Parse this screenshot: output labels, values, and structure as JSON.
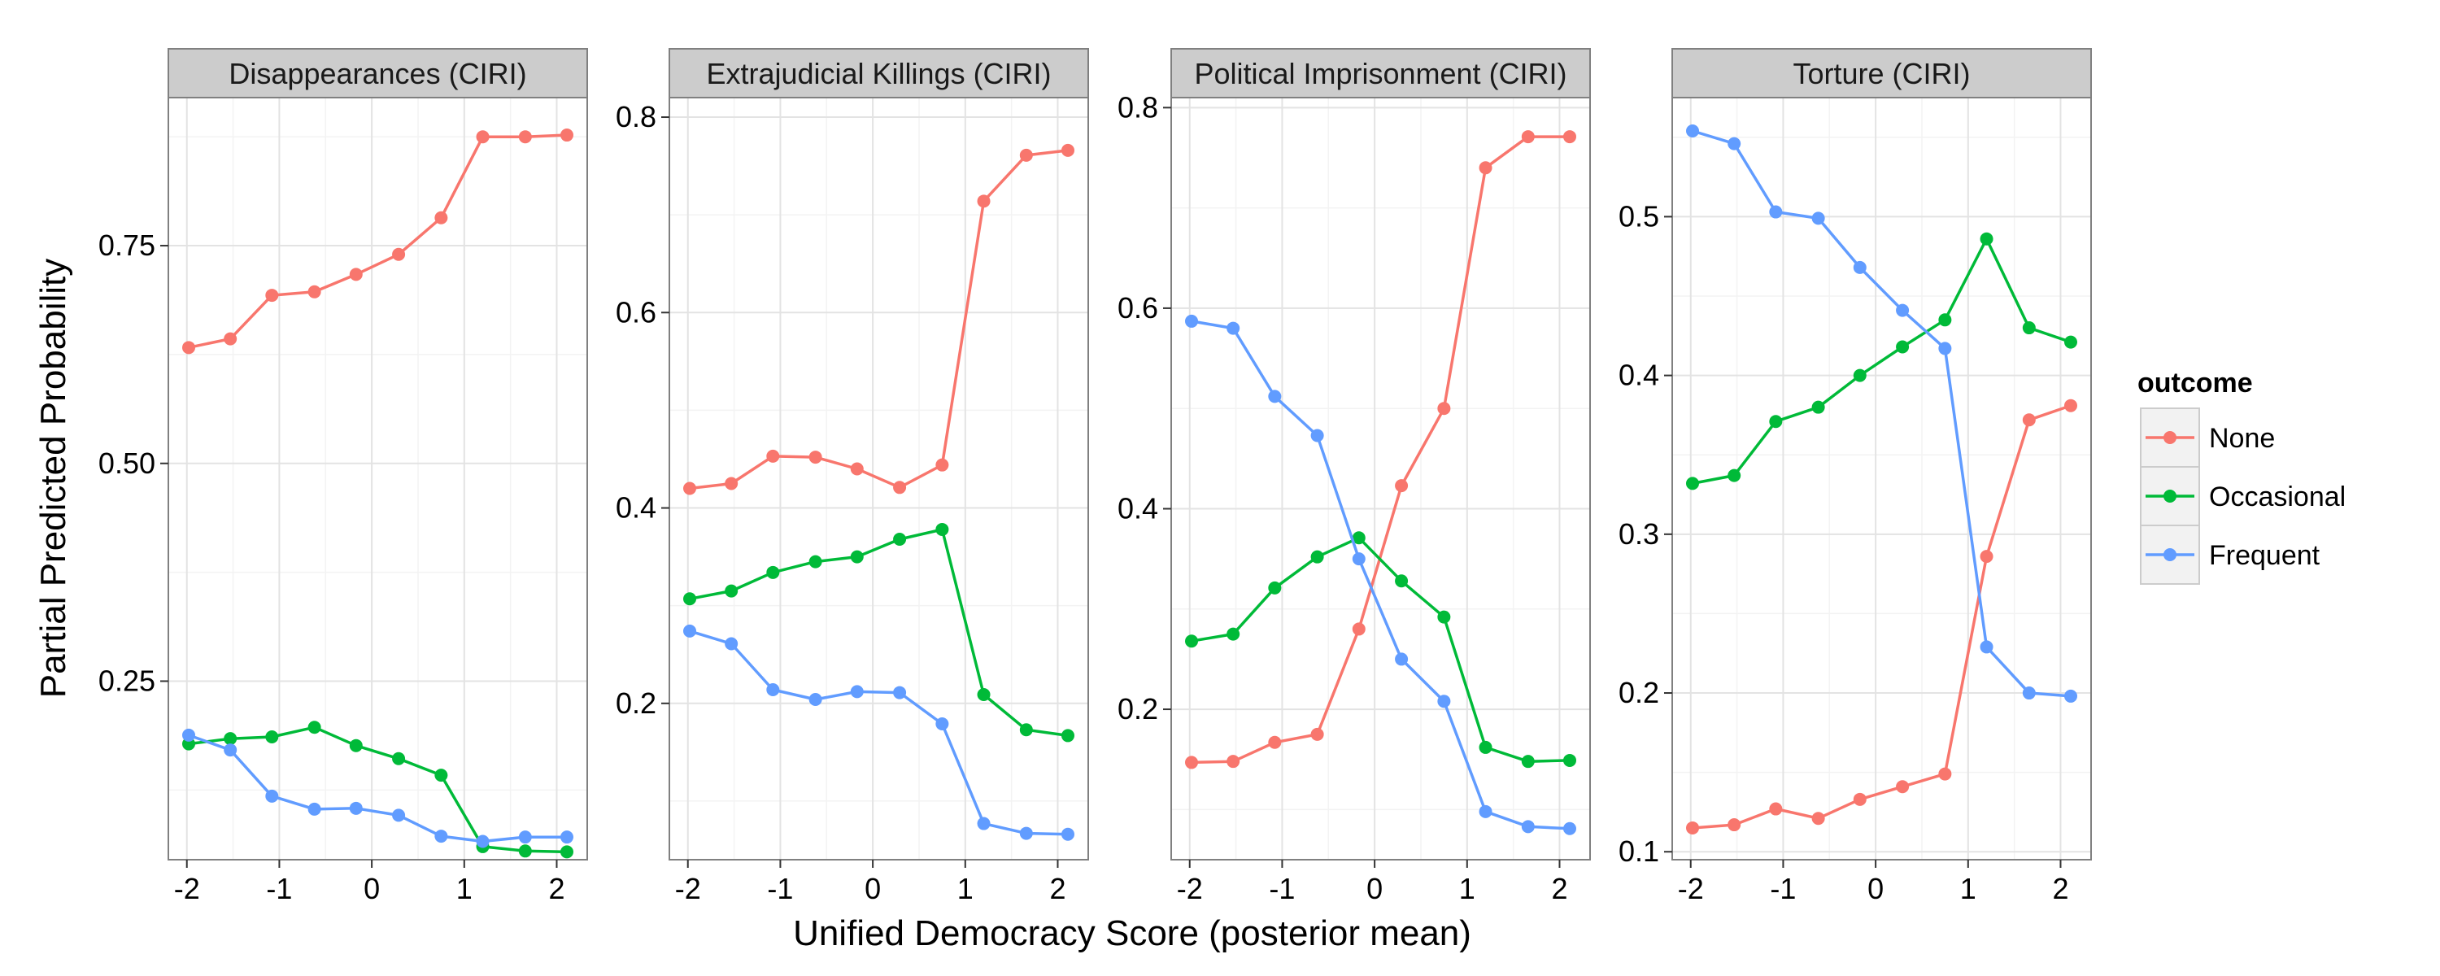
{
  "chart_data": {
    "type": "line",
    "ylabel": "Partial Predicted Probability",
    "xlabel": "Unified Democracy Score (posterior mean)",
    "legend": {
      "title": "outcome",
      "placement": "right",
      "entries": [
        "None",
        "Occasional",
        "Frequent"
      ]
    },
    "colors": {
      "None": "#F8766D",
      "Occasional": "#00BA38",
      "Frequent": "#619CFF"
    },
    "grid": true,
    "x": [
      -1.98,
      -1.53,
      -1.08,
      -0.62,
      -0.17,
      0.29,
      0.75,
      1.2,
      1.66,
      2.11
    ],
    "xlim": [
      -2.2,
      2.33
    ],
    "xticks": [
      -2,
      -1,
      0,
      1,
      2
    ],
    "xtick_labels": [
      "-2",
      "-1",
      "0",
      "1",
      "2"
    ],
    "panels": [
      {
        "title": "Disappearances (CIRI)",
        "ylim": [
          0.045,
          0.92
        ],
        "yticks": [
          0.25,
          0.5,
          0.75
        ],
        "ytick_labels": [
          "0.25",
          "0.50",
          "0.75"
        ],
        "series": [
          {
            "name": "None",
            "values": [
              0.633,
              0.643,
              0.693,
              0.697,
              0.717,
              0.74,
              0.782,
              0.875,
              0.875,
              0.877
            ]
          },
          {
            "name": "Occasional",
            "values": [
              0.178,
              0.184,
              0.186,
              0.197,
              0.176,
              0.161,
              0.142,
              0.06,
              0.055,
              0.054
            ]
          },
          {
            "name": "Frequent",
            "values": [
              0.188,
              0.171,
              0.118,
              0.103,
              0.104,
              0.096,
              0.072,
              0.066,
              0.071,
              0.071
            ]
          }
        ]
      },
      {
        "title": "Extrajudicial Killings (CIRI)",
        "ylim": [
          0.04,
          0.82
        ],
        "yticks": [
          0.2,
          0.4,
          0.6,
          0.8
        ],
        "ytick_labels": [
          "0.2",
          "0.4",
          "0.6",
          "0.8"
        ],
        "series": [
          {
            "name": "None",
            "values": [
              0.42,
              0.425,
              0.453,
              0.452,
              0.44,
              0.421,
              0.444,
              0.714,
              0.761,
              0.766
            ]
          },
          {
            "name": "Occasional",
            "values": [
              0.307,
              0.315,
              0.334,
              0.345,
              0.35,
              0.368,
              0.378,
              0.209,
              0.173,
              0.167
            ]
          },
          {
            "name": "Frequent",
            "values": [
              0.274,
              0.261,
              0.214,
              0.204,
              0.212,
              0.211,
              0.179,
              0.077,
              0.067,
              0.066
            ]
          }
        ]
      },
      {
        "title": "Political Imprisonment (CIRI)",
        "ylim": [
          0.05,
          0.81
        ],
        "yticks": [
          0.2,
          0.4,
          0.6,
          0.8
        ],
        "ytick_labels": [
          "0.2",
          "0.4",
          "0.6",
          "0.8"
        ],
        "series": [
          {
            "name": "None",
            "values": [
              0.147,
              0.148,
              0.167,
              0.175,
              0.28,
              0.423,
              0.5,
              0.74,
              0.771,
              0.771
            ]
          },
          {
            "name": "Occasional",
            "values": [
              0.268,
              0.275,
              0.321,
              0.352,
              0.371,
              0.328,
              0.292,
              0.162,
              0.148,
              0.149
            ]
          },
          {
            "name": "Frequent",
            "values": [
              0.587,
              0.58,
              0.512,
              0.473,
              0.35,
              0.25,
              0.208,
              0.098,
              0.083,
              0.081
            ]
          }
        ]
      },
      {
        "title": "Torture (CIRI)",
        "ylim": [
          0.095,
          0.575
        ],
        "yticks": [
          0.1,
          0.2,
          0.3,
          0.4,
          0.5
        ],
        "ytick_labels": [
          "0.1",
          "0.2",
          "0.3",
          "0.4",
          "0.5"
        ],
        "series": [
          {
            "name": "None",
            "values": [
              0.115,
              0.117,
              0.127,
              0.121,
              0.133,
              0.141,
              0.149,
              0.286,
              0.372,
              0.381
            ]
          },
          {
            "name": "Occasional",
            "values": [
              0.332,
              0.337,
              0.371,
              0.38,
              0.4,
              0.418,
              0.435,
              0.486,
              0.43,
              0.421
            ]
          },
          {
            "name": "Frequent",
            "values": [
              0.554,
              0.546,
              0.503,
              0.499,
              0.468,
              0.441,
              0.417,
              0.229,
              0.2,
              0.198
            ]
          }
        ]
      }
    ]
  }
}
